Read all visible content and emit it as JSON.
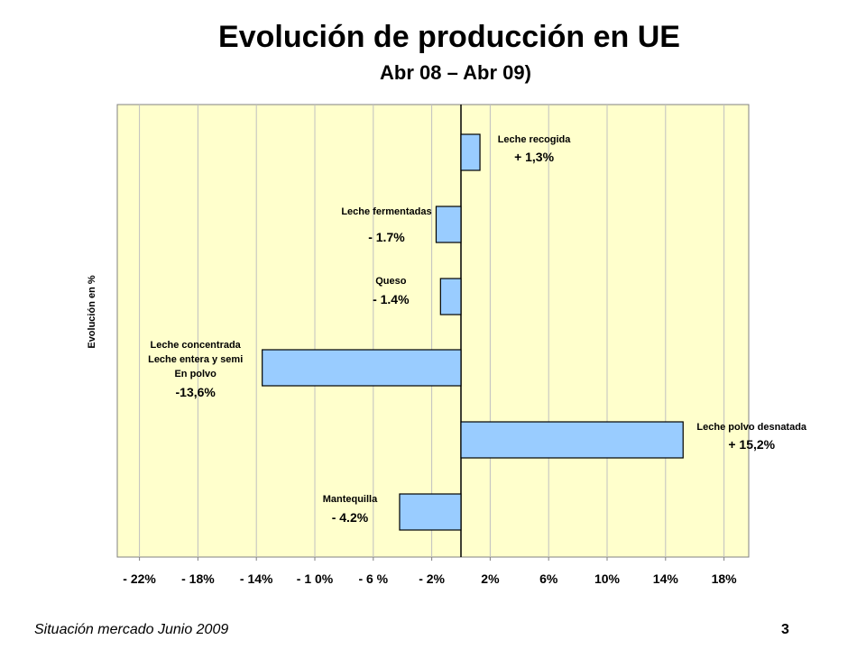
{
  "chart_data": {
    "type": "bar",
    "orientation": "horizontal",
    "title": "Evolución de producción en UE",
    "subtitle": "Abr 08 – Abr 09)",
    "ylabel": "Evolución en %",
    "xlim": [
      -24,
      20
    ],
    "x_ticks": [
      "- 22%",
      "- 18%",
      "- 14%",
      "- 1 0%",
      "- 6 %",
      "- 2%",
      "2%",
      "6%",
      "10%",
      "14%",
      "18%"
    ],
    "grid": true,
    "colors": {
      "bar_fill": "#99ccff",
      "background": "#ffffcc",
      "grid": "#c0c0c0"
    },
    "bars": [
      {
        "lines": [
          "Leche recogida"
        ],
        "value_label": "+ 1,3%",
        "value": 1.3
      },
      {
        "lines": [
          "Leche fermentadas"
        ],
        "value_label": "- 1.7%",
        "value": -1.7
      },
      {
        "lines": [
          "Queso"
        ],
        "value_label": "- 1.4%",
        "value": -1.4
      },
      {
        "lines": [
          "Leche concentrada",
          "Leche entera y semi",
          "En polvo"
        ],
        "value_label": "-13,6%",
        "value": -13.6
      },
      {
        "lines": [
          "Leche polvo desnatada"
        ],
        "value_label": "+ 15,2%",
        "value": 15.2
      },
      {
        "lines": [
          "Mantequilla"
        ],
        "value_label": "- 4.2%",
        "value": -4.2
      }
    ]
  },
  "footer": {
    "left": "Situación mercado Junio 2009",
    "page": "3"
  }
}
